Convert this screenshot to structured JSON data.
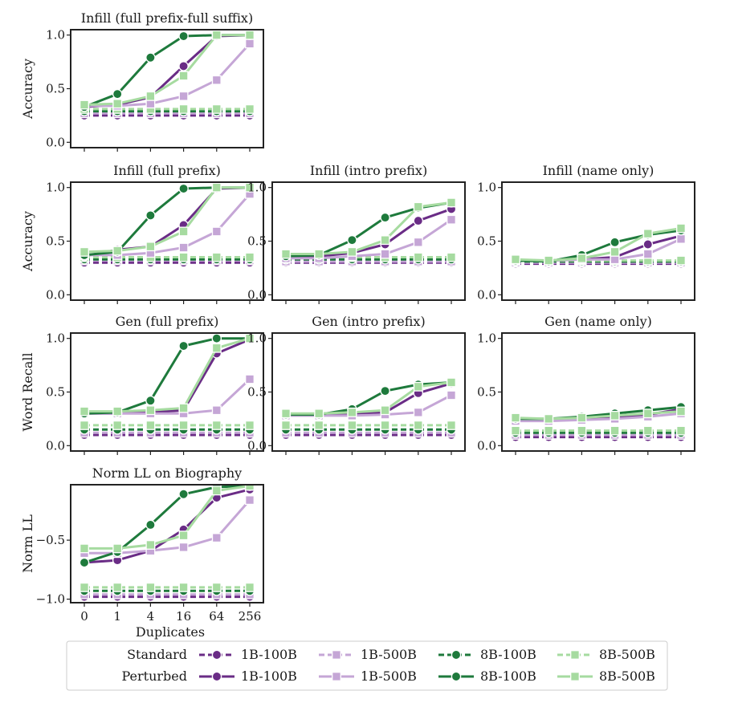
{
  "chart_data": {
    "type": "line",
    "x": [
      "0",
      "1",
      "4",
      "16",
      "64",
      "256"
    ],
    "xlabel": "Duplicates",
    "series_styles": {
      "1B-100B": "#6a2c86",
      "1B-500B": "#c5a6d6",
      "8B-100B": "#1e7a3c",
      "8B-500B": "#a6dba0"
    },
    "legend": {
      "rows": [
        {
          "label": "Standard",
          "style": "dashed"
        },
        {
          "label": "Perturbed",
          "style": "solid"
        }
      ],
      "series": [
        "1B-100B",
        "1B-500B",
        "8B-100B",
        "8B-500B"
      ]
    },
    "panels": [
      {
        "id": "infill-full-prefix-full-suffix",
        "title": "Infill (full prefix-full suffix)",
        "ylabel": "Accuracy",
        "ylim": [
          -0.05,
          1.05
        ],
        "yticks": [
          "0.0",
          "0.5",
          "1.0"
        ],
        "yvals": [
          0.0,
          0.5,
          1.0
        ],
        "perturbed": {
          "1B-100B": [
            0.33,
            0.35,
            0.42,
            0.71,
            0.99,
            1.0
          ],
          "1B-500B": [
            0.34,
            0.34,
            0.36,
            0.43,
            0.58,
            0.92
          ],
          "8B-100B": [
            0.33,
            0.45,
            0.79,
            0.99,
            1.0,
            1.0
          ],
          "8B-500B": [
            0.35,
            0.36,
            0.43,
            0.62,
            1.0,
            1.0
          ]
        },
        "standard": {
          "1B-100B": [
            0.25,
            0.25,
            0.25,
            0.25,
            0.25,
            0.25
          ],
          "1B-500B": [
            0.27,
            0.27,
            0.27,
            0.27,
            0.27,
            0.27
          ],
          "8B-100B": [
            0.29,
            0.29,
            0.29,
            0.29,
            0.29,
            0.29
          ],
          "8B-500B": [
            0.31,
            0.31,
            0.31,
            0.31,
            0.31,
            0.31
          ]
        }
      },
      {
        "id": "infill-full-prefix",
        "title": "Infill (full prefix)",
        "ylabel": "Accuracy",
        "ylim": [
          -0.05,
          1.05
        ],
        "yticks": [
          "0.0",
          "0.5",
          "1.0"
        ],
        "yvals": [
          0.0,
          0.5,
          1.0
        ],
        "perturbed": {
          "1B-100B": [
            0.36,
            0.42,
            0.45,
            0.65,
            0.99,
            1.0
          ],
          "1B-500B": [
            0.37,
            0.37,
            0.39,
            0.44,
            0.59,
            0.94
          ],
          "8B-100B": [
            0.37,
            0.4,
            0.74,
            0.99,
            1.0,
            1.0
          ],
          "8B-500B": [
            0.4,
            0.41,
            0.45,
            0.59,
            1.0,
            1.0
          ]
        },
        "standard": {
          "1B-100B": [
            0.3,
            0.3,
            0.3,
            0.3,
            0.3,
            0.3
          ],
          "1B-500B": [
            0.32,
            0.32,
            0.32,
            0.32,
            0.32,
            0.32
          ],
          "8B-100B": [
            0.33,
            0.33,
            0.33,
            0.33,
            0.33,
            0.33
          ],
          "8B-500B": [
            0.35,
            0.35,
            0.35,
            0.35,
            0.35,
            0.35
          ]
        }
      },
      {
        "id": "infill-intro-prefix",
        "title": "Infill (intro prefix)",
        "ylabel": "",
        "ylim": [
          -0.05,
          1.05
        ],
        "yticks": [
          "0.0",
          "0.5",
          "1.0"
        ],
        "yvals": [
          0.0,
          0.5,
          1.0
        ],
        "perturbed": {
          "1B-100B": [
            0.34,
            0.36,
            0.39,
            0.47,
            0.69,
            0.8
          ],
          "1B-500B": [
            0.34,
            0.34,
            0.36,
            0.38,
            0.49,
            0.7
          ],
          "8B-100B": [
            0.36,
            0.37,
            0.51,
            0.72,
            0.81,
            0.86
          ],
          "8B-500B": [
            0.38,
            0.38,
            0.4,
            0.51,
            0.82,
            0.86
          ]
        },
        "standard": {
          "1B-100B": [
            0.3,
            0.3,
            0.3,
            0.3,
            0.3,
            0.3
          ],
          "1B-500B": [
            0.31,
            0.31,
            0.31,
            0.31,
            0.31,
            0.31
          ],
          "8B-100B": [
            0.33,
            0.33,
            0.33,
            0.33,
            0.33,
            0.33
          ],
          "8B-500B": [
            0.35,
            0.35,
            0.35,
            0.35,
            0.35,
            0.35
          ]
        }
      },
      {
        "id": "infill-name-only",
        "title": "Infill (name only)",
        "ylabel": "",
        "ylim": [
          -0.05,
          1.05
        ],
        "yticks": [
          "0.0",
          "0.5",
          "1.0"
        ],
        "yvals": [
          0.0,
          0.5,
          1.0
        ],
        "perturbed": {
          "1B-100B": [
            0.32,
            0.32,
            0.33,
            0.35,
            0.47,
            0.55
          ],
          "1B-500B": [
            0.32,
            0.32,
            0.33,
            0.33,
            0.38,
            0.52
          ],
          "8B-100B": [
            0.32,
            0.31,
            0.37,
            0.49,
            0.56,
            0.6
          ],
          "8B-500B": [
            0.33,
            0.32,
            0.34,
            0.4,
            0.57,
            0.62
          ]
        },
        "standard": {
          "1B-100B": [
            0.29,
            0.29,
            0.29,
            0.29,
            0.29,
            0.29
          ],
          "1B-500B": [
            0.3,
            0.3,
            0.3,
            0.3,
            0.3,
            0.3
          ],
          "8B-100B": [
            0.31,
            0.31,
            0.31,
            0.31,
            0.31,
            0.31
          ],
          "8B-500B": [
            0.32,
            0.32,
            0.32,
            0.32,
            0.32,
            0.32
          ]
        }
      },
      {
        "id": "gen-full-prefix",
        "title": "Gen (full prefix)",
        "ylabel": "Word Recall",
        "ylim": [
          -0.05,
          1.05
        ],
        "yticks": [
          "0.0",
          "0.5",
          "1.0"
        ],
        "yvals": [
          0.0,
          0.5,
          1.0
        ],
        "perturbed": {
          "1B-100B": [
            0.3,
            0.3,
            0.31,
            0.33,
            0.86,
            0.99
          ],
          "1B-500B": [
            0.3,
            0.3,
            0.3,
            0.3,
            0.33,
            0.62
          ],
          "8B-100B": [
            0.3,
            0.31,
            0.42,
            0.93,
            1.0,
            1.0
          ],
          "8B-500B": [
            0.32,
            0.32,
            0.33,
            0.35,
            0.91,
            1.0
          ]
        },
        "standard": {
          "1B-100B": [
            0.1,
            0.1,
            0.1,
            0.1,
            0.1,
            0.1
          ],
          "1B-500B": [
            0.12,
            0.12,
            0.12,
            0.12,
            0.12,
            0.12
          ],
          "8B-100B": [
            0.15,
            0.15,
            0.15,
            0.15,
            0.15,
            0.15
          ],
          "8B-500B": [
            0.19,
            0.19,
            0.19,
            0.19,
            0.19,
            0.19
          ]
        }
      },
      {
        "id": "gen-intro-prefix",
        "title": "Gen (intro prefix)",
        "ylabel": "",
        "ylim": [
          -0.05,
          1.05
        ],
        "yticks": [
          "0.0",
          "0.5",
          "1.0"
        ],
        "yvals": [
          0.0,
          0.5,
          1.0
        ],
        "perturbed": {
          "1B-100B": [
            0.29,
            0.29,
            0.3,
            0.31,
            0.49,
            0.58
          ],
          "1B-500B": [
            0.28,
            0.28,
            0.28,
            0.29,
            0.31,
            0.47
          ],
          "8B-100B": [
            0.29,
            0.29,
            0.34,
            0.51,
            0.57,
            0.59
          ],
          "8B-500B": [
            0.3,
            0.3,
            0.31,
            0.33,
            0.55,
            0.59
          ]
        },
        "standard": {
          "1B-100B": [
            0.1,
            0.1,
            0.1,
            0.1,
            0.1,
            0.1
          ],
          "1B-500B": [
            0.12,
            0.12,
            0.12,
            0.12,
            0.12,
            0.12
          ],
          "8B-100B": [
            0.15,
            0.15,
            0.15,
            0.15,
            0.15,
            0.15
          ],
          "8B-500B": [
            0.19,
            0.19,
            0.19,
            0.19,
            0.19,
            0.19
          ]
        }
      },
      {
        "id": "gen-name-only",
        "title": "Gen (name only)",
        "ylabel": "",
        "ylim": [
          -0.05,
          1.05
        ],
        "yticks": [
          "0.0",
          "0.5",
          "1.0"
        ],
        "yvals": [
          0.0,
          0.5,
          1.0
        ],
        "perturbed": {
          "1B-100B": [
            0.24,
            0.24,
            0.25,
            0.26,
            0.29,
            0.34
          ],
          "1B-500B": [
            0.23,
            0.23,
            0.24,
            0.25,
            0.27,
            0.3
          ],
          "8B-100B": [
            0.25,
            0.25,
            0.27,
            0.3,
            0.33,
            0.36
          ],
          "8B-500B": [
            0.26,
            0.25,
            0.26,
            0.28,
            0.3,
            0.32
          ]
        },
        "standard": {
          "1B-100B": [
            0.08,
            0.08,
            0.08,
            0.08,
            0.08,
            0.08
          ],
          "1B-500B": [
            0.1,
            0.1,
            0.1,
            0.1,
            0.1,
            0.1
          ],
          "8B-100B": [
            0.12,
            0.12,
            0.12,
            0.12,
            0.12,
            0.12
          ],
          "8B-500B": [
            0.14,
            0.14,
            0.14,
            0.14,
            0.14,
            0.14
          ]
        }
      },
      {
        "id": "norm-ll-on-biography",
        "title": "Norm LL on Biography",
        "ylabel": "Norm LL",
        "ylim": [
          -1.03,
          -0.03
        ],
        "yticks": [
          "−0.5",
          "−1.0"
        ],
        "yvals": [
          -0.5,
          -1.0
        ],
        "perturbed": {
          "1B-100B": [
            -0.69,
            -0.67,
            -0.59,
            -0.41,
            -0.14,
            -0.07
          ],
          "1B-500B": [
            -0.61,
            -0.61,
            -0.59,
            -0.56,
            -0.48,
            -0.16
          ],
          "8B-100B": [
            -0.69,
            -0.6,
            -0.37,
            -0.11,
            -0.05,
            -0.04
          ],
          "8B-500B": [
            -0.57,
            -0.57,
            -0.54,
            -0.46,
            -0.08,
            -0.04
          ]
        },
        "standard": {
          "1B-100B": [
            -0.98,
            -0.98,
            -0.98,
            -0.98,
            -0.98,
            -0.98
          ],
          "1B-500B": [
            -0.96,
            -0.96,
            -0.96,
            -0.96,
            -0.96,
            -0.96
          ],
          "8B-100B": [
            -0.93,
            -0.93,
            -0.93,
            -0.93,
            -0.93,
            -0.93
          ],
          "8B-500B": [
            -0.9,
            -0.9,
            -0.9,
            -0.9,
            -0.9,
            -0.9
          ]
        }
      }
    ]
  }
}
